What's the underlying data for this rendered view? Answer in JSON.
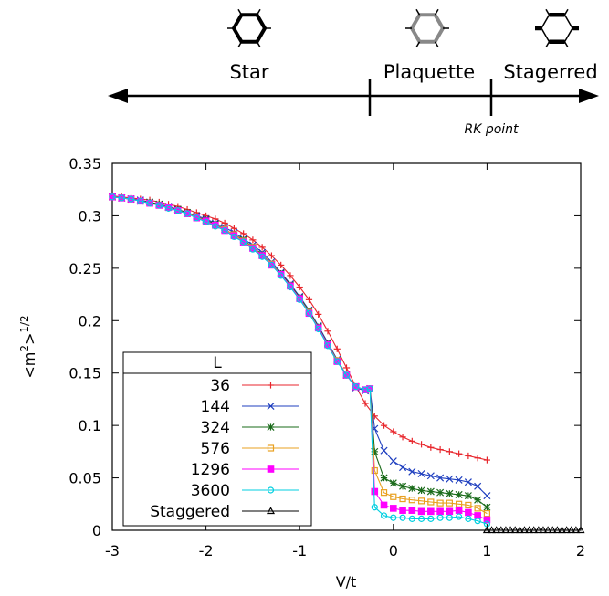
{
  "phase_diagram": {
    "phases": [
      {
        "label": "Star",
        "icon": "hexagon-star-icon"
      },
      {
        "label": "Plaquette",
        "icon": "hexagon-plaquette-icon"
      },
      {
        "label": "Stagerred",
        "icon": "hexagon-staggered-icon"
      }
    ],
    "rk_label": "RK point",
    "boundaries": [
      -0.25,
      1.0
    ]
  },
  "chart_data": {
    "type": "line",
    "xlabel": "V/t",
    "ylabel": "<m²>¹ᐟ²",
    "ylabel_base": "<m",
    "ylabel_sup1": "2",
    "ylabel_mid": ">",
    "ylabel_sup2": "1/2",
    "xlim": [
      -3,
      2
    ],
    "ylim": [
      0,
      0.35
    ],
    "xticks": [
      -3,
      -2,
      -1,
      0,
      1,
      2
    ],
    "xtick_labels": [
      "-3",
      "-2",
      "-1",
      "0",
      "1",
      "2"
    ],
    "yticks": [
      0,
      0.05,
      0.1,
      0.15,
      0.2,
      0.25,
      0.3,
      0.35
    ],
    "ytick_labels": [
      "0",
      "0.05",
      "0.1",
      "0.15",
      "0.2",
      "0.25",
      "0.3",
      "0.35"
    ],
    "legend_title": "L",
    "legend_position": "bottom-left",
    "series": [
      {
        "name": "36",
        "color": "#e8262c",
        "marker": "plus",
        "x": [
          -3,
          -2.9,
          -2.8,
          -2.7,
          -2.6,
          -2.5,
          -2.4,
          -2.3,
          -2.2,
          -2.1,
          -2.0,
          -1.9,
          -1.8,
          -1.7,
          -1.6,
          -1.5,
          -1.4,
          -1.3,
          -1.2,
          -1.1,
          -1.0,
          -0.9,
          -0.8,
          -0.7,
          -0.6,
          -0.5,
          -0.4,
          -0.3,
          -0.2,
          -0.1,
          0,
          0.1,
          0.2,
          0.3,
          0.4,
          0.5,
          0.6,
          0.7,
          0.8,
          0.9,
          1.0
        ],
        "y": [
          0.319,
          0.318,
          0.317,
          0.316,
          0.315,
          0.313,
          0.311,
          0.309,
          0.306,
          0.303,
          0.3,
          0.297,
          0.293,
          0.288,
          0.283,
          0.277,
          0.27,
          0.262,
          0.253,
          0.243,
          0.232,
          0.22,
          0.206,
          0.19,
          0.173,
          0.155,
          0.137,
          0.121,
          0.109,
          0.1,
          0.094,
          0.089,
          0.085,
          0.082,
          0.079,
          0.077,
          0.075,
          0.073,
          0.071,
          0.069,
          0.067
        ]
      },
      {
        "name": "144",
        "color": "#1f3fbf",
        "marker": "cross",
        "x": [
          -3,
          -2.9,
          -2.8,
          -2.7,
          -2.6,
          -2.5,
          -2.4,
          -2.3,
          -2.2,
          -2.1,
          -2.0,
          -1.9,
          -1.8,
          -1.7,
          -1.6,
          -1.5,
          -1.4,
          -1.3,
          -1.2,
          -1.1,
          -1.0,
          -0.9,
          -0.8,
          -0.7,
          -0.6,
          -0.5,
          -0.4,
          -0.3,
          -0.25,
          -0.2,
          -0.1,
          0,
          0.1,
          0.2,
          0.3,
          0.4,
          0.5,
          0.6,
          0.7,
          0.8,
          0.9,
          1.0
        ],
        "y": [
          0.318,
          0.317,
          0.316,
          0.315,
          0.313,
          0.311,
          0.309,
          0.306,
          0.303,
          0.3,
          0.297,
          0.293,
          0.289,
          0.284,
          0.278,
          0.272,
          0.265,
          0.256,
          0.246,
          0.235,
          0.223,
          0.21,
          0.195,
          0.179,
          0.163,
          0.148,
          0.136,
          0.133,
          0.135,
          0.097,
          0.076,
          0.066,
          0.06,
          0.056,
          0.054,
          0.052,
          0.05,
          0.049,
          0.048,
          0.046,
          0.042,
          0.033
        ]
      },
      {
        "name": "324",
        "color": "#1a6b1a",
        "marker": "asterisk",
        "x": [
          -3,
          -2.9,
          -2.8,
          -2.7,
          -2.6,
          -2.5,
          -2.4,
          -2.3,
          -2.2,
          -2.1,
          -2.0,
          -1.9,
          -1.8,
          -1.7,
          -1.6,
          -1.5,
          -1.4,
          -1.3,
          -1.2,
          -1.1,
          -1.0,
          -0.9,
          -0.8,
          -0.7,
          -0.6,
          -0.5,
          -0.4,
          -0.3,
          -0.25,
          -0.2,
          -0.1,
          0,
          0.1,
          0.2,
          0.3,
          0.4,
          0.5,
          0.6,
          0.7,
          0.8,
          0.9,
          1.0
        ],
        "y": [
          0.318,
          0.317,
          0.316,
          0.314,
          0.313,
          0.311,
          0.308,
          0.306,
          0.303,
          0.299,
          0.296,
          0.292,
          0.287,
          0.282,
          0.277,
          0.27,
          0.263,
          0.254,
          0.245,
          0.234,
          0.222,
          0.209,
          0.194,
          0.178,
          0.162,
          0.148,
          0.137,
          0.134,
          0.135,
          0.075,
          0.05,
          0.045,
          0.042,
          0.04,
          0.038,
          0.037,
          0.036,
          0.035,
          0.034,
          0.033,
          0.029,
          0.022
        ]
      },
      {
        "name": "576",
        "color": "#e8a020",
        "marker": "square-open",
        "x": [
          -3,
          -2.9,
          -2.8,
          -2.7,
          -2.6,
          -2.5,
          -2.4,
          -2.3,
          -2.2,
          -2.1,
          -2.0,
          -1.9,
          -1.8,
          -1.7,
          -1.6,
          -1.5,
          -1.4,
          -1.3,
          -1.2,
          -1.1,
          -1.0,
          -0.9,
          -0.8,
          -0.7,
          -0.6,
          -0.5,
          -0.4,
          -0.3,
          -0.25,
          -0.2,
          -0.1,
          0,
          0.1,
          0.2,
          0.3,
          0.4,
          0.5,
          0.6,
          0.7,
          0.8,
          0.9,
          1.0
        ],
        "y": [
          0.318,
          0.317,
          0.316,
          0.314,
          0.312,
          0.31,
          0.308,
          0.305,
          0.302,
          0.299,
          0.295,
          0.291,
          0.287,
          0.282,
          0.276,
          0.27,
          0.262,
          0.254,
          0.244,
          0.233,
          0.221,
          0.208,
          0.193,
          0.177,
          0.162,
          0.148,
          0.137,
          0.134,
          0.135,
          0.057,
          0.036,
          0.032,
          0.03,
          0.029,
          0.028,
          0.027,
          0.026,
          0.026,
          0.025,
          0.024,
          0.021,
          0.016
        ]
      },
      {
        "name": "1296",
        "color": "#ff00ff",
        "marker": "square-filled",
        "x": [
          -3,
          -2.9,
          -2.8,
          -2.7,
          -2.6,
          -2.5,
          -2.4,
          -2.3,
          -2.2,
          -2.1,
          -2.0,
          -1.9,
          -1.8,
          -1.7,
          -1.6,
          -1.5,
          -1.4,
          -1.3,
          -1.2,
          -1.1,
          -1.0,
          -0.9,
          -0.8,
          -0.7,
          -0.6,
          -0.5,
          -0.4,
          -0.3,
          -0.25,
          -0.2,
          -0.1,
          0,
          0.1,
          0.2,
          0.3,
          0.4,
          0.5,
          0.6,
          0.7,
          0.8,
          0.9,
          1.0
        ],
        "y": [
          0.318,
          0.317,
          0.316,
          0.314,
          0.312,
          0.31,
          0.308,
          0.305,
          0.302,
          0.298,
          0.295,
          0.291,
          0.286,
          0.281,
          0.275,
          0.269,
          0.262,
          0.253,
          0.244,
          0.233,
          0.221,
          0.207,
          0.193,
          0.177,
          0.161,
          0.148,
          0.137,
          0.134,
          0.135,
          0.037,
          0.024,
          0.021,
          0.019,
          0.019,
          0.018,
          0.018,
          0.018,
          0.018,
          0.019,
          0.017,
          0.014,
          0.01
        ]
      },
      {
        "name": "3600",
        "color": "#00cfe0",
        "marker": "circle-open",
        "x": [
          -3,
          -2.9,
          -2.8,
          -2.7,
          -2.6,
          -2.5,
          -2.4,
          -2.3,
          -2.2,
          -2.1,
          -2.0,
          -1.9,
          -1.8,
          -1.7,
          -1.6,
          -1.5,
          -1.4,
          -1.3,
          -1.2,
          -1.1,
          -1.0,
          -0.9,
          -0.8,
          -0.7,
          -0.6,
          -0.5,
          -0.4,
          -0.3,
          -0.25,
          -0.2,
          -0.1,
          0,
          0.1,
          0.2,
          0.3,
          0.4,
          0.5,
          0.6,
          0.7,
          0.8,
          0.9,
          1.0
        ],
        "y": [
          0.318,
          0.317,
          0.316,
          0.314,
          0.312,
          0.31,
          0.307,
          0.305,
          0.302,
          0.298,
          0.294,
          0.29,
          0.286,
          0.28,
          0.275,
          0.268,
          0.261,
          0.253,
          0.243,
          0.232,
          0.22,
          0.207,
          0.192,
          0.176,
          0.161,
          0.148,
          0.137,
          0.134,
          0.135,
          0.022,
          0.014,
          0.012,
          0.012,
          0.011,
          0.011,
          0.011,
          0.012,
          0.012,
          0.013,
          0.011,
          0.009,
          0.006
        ]
      },
      {
        "name": "Staggered",
        "color": "#000000",
        "marker": "triangle-open",
        "x": [
          1.0,
          1.05,
          1.1,
          1.15,
          1.2,
          1.25,
          1.3,
          1.35,
          1.4,
          1.45,
          1.5,
          1.55,
          1.6,
          1.65,
          1.7,
          1.75,
          1.8,
          1.85,
          1.9,
          1.95,
          2.0
        ],
        "y": [
          0,
          0,
          0,
          0,
          0,
          0,
          0,
          0,
          0,
          0,
          0,
          0,
          0,
          0,
          0,
          0,
          0,
          0,
          0,
          0,
          0
        ]
      }
    ]
  }
}
